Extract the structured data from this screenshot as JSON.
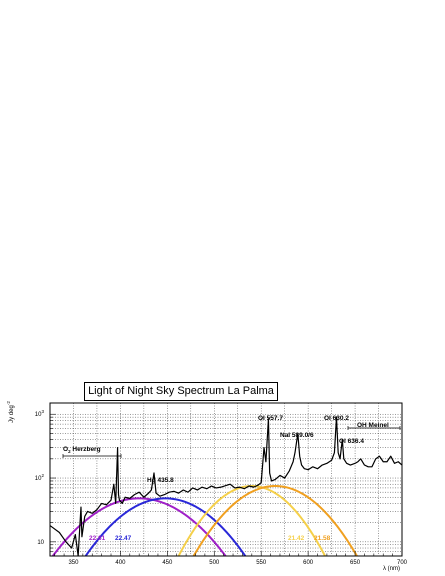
{
  "chart_data": {
    "type": "line",
    "title": "Light of Night Sky Spectrum La Palma",
    "xlabel": "λ (nm)",
    "ylabel": "Jy deg",
    "ylabel_sup": "-2",
    "xlim": [
      325,
      700
    ],
    "ylim": [
      6,
      1500
    ],
    "yscale": "log",
    "grid": true,
    "x_ticks": [
      350,
      400,
      450,
      500,
      550,
      600,
      650,
      700
    ],
    "y_ticks": [
      {
        "value": 10,
        "base": "10",
        "exp": ""
      },
      {
        "value": 100,
        "base": "10",
        "exp": "2"
      },
      {
        "value": 1000,
        "base": "10",
        "exp": "3"
      }
    ],
    "series": [
      {
        "color": "#000000",
        "x": [
          325,
          335,
          342,
          348,
          352,
          355,
          357,
          358,
          359,
          362,
          365,
          370,
          375,
          380,
          385,
          390,
          393,
          395,
          397,
          398,
          399,
          402,
          405,
          410,
          415,
          420,
          425,
          430,
          433,
          435.8,
          438,
          442,
          447,
          452,
          457,
          462,
          467,
          472,
          477,
          482,
          487,
          492,
          497,
          502,
          507,
          512,
          517,
          522,
          527,
          532,
          537,
          542,
          547,
          550,
          553,
          555,
          557.7,
          559,
          561,
          565,
          570,
          575,
          580,
          584,
          586,
          589,
          591,
          593,
          596,
          600,
          605,
          610,
          615,
          620,
          625,
          628,
          630.2,
          632,
          634,
          636.4,
          638,
          641,
          645,
          650,
          653,
          656,
          660,
          664,
          668,
          672,
          676,
          680,
          684,
          688,
          692,
          696,
          700
        ],
        "y": [
          18,
          14,
          10,
          8,
          13,
          6,
          20,
          35,
          12,
          25,
          30,
          28,
          32,
          40,
          38,
          45,
          80,
          40,
          300,
          55,
          45,
          40,
          50,
          48,
          55,
          60,
          50,
          58,
          65,
          120,
          58,
          52,
          55,
          60,
          62,
          58,
          65,
          60,
          70,
          65,
          72,
          68,
          75,
          70,
          72,
          76,
          80,
          70,
          72,
          68,
          75,
          72,
          78,
          85,
          300,
          180,
          850,
          120,
          90,
          95,
          110,
          100,
          130,
          180,
          250,
          500,
          220,
          160,
          140,
          135,
          150,
          140,
          160,
          170,
          190,
          250,
          900,
          250,
          200,
          400,
          200,
          170,
          160,
          170,
          180,
          200,
          160,
          150,
          150,
          200,
          220,
          180,
          180,
          220,
          170,
          180,
          160
        ]
      },
      {
        "color": "#a020c8",
        "peak": 420,
        "half_width": 92,
        "peak_value": 48
      },
      {
        "color": "#2a28d8",
        "peak": 448,
        "half_width": 85,
        "peak_value": 48
      },
      {
        "color": "#f5d04a",
        "peak": 540,
        "half_width": 78,
        "peak_value": 75
      },
      {
        "color": "#f0a020",
        "peak": 565,
        "half_width": 87,
        "peak_value": 75
      }
    ],
    "annotations": [
      {
        "text": "OI 557.7",
        "color": "#000000"
      },
      {
        "text": "OI 630.2",
        "color": "#000000"
      },
      {
        "text": "OH Meinel",
        "color": "#000000"
      },
      {
        "text": "NaI 589.0/6",
        "color": "#000000"
      },
      {
        "text": "OI 636.4",
        "color": "#000000"
      },
      {
        "text": "O",
        "sub": "2",
        "rest": " Herzberg",
        "color": "#000000"
      },
      {
        "text": "Hg 435.8",
        "color": "#000000"
      },
      {
        "text": "22.61",
        "color": "#a020c8"
      },
      {
        "text": "22.47",
        "color": "#2a28d8"
      },
      {
        "text": "21.42",
        "color": "#f5d04a"
      },
      {
        "text": "21.58",
        "color": "#f0a020"
      }
    ]
  }
}
